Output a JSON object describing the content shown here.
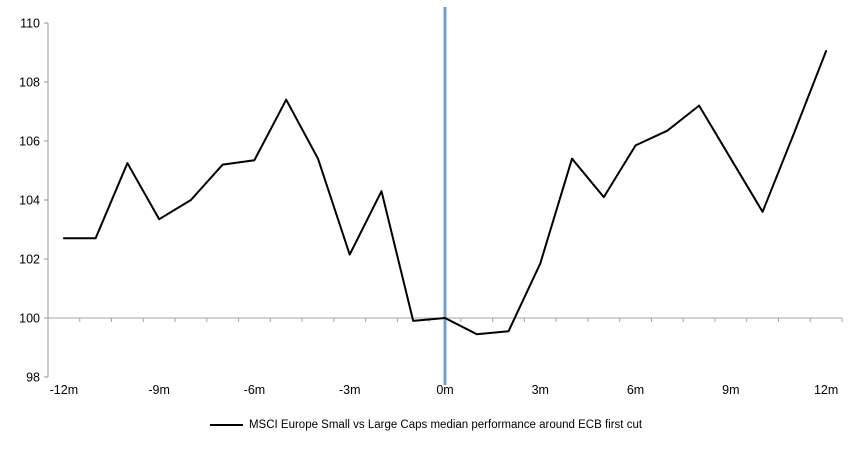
{
  "chart_data": {
    "type": "line",
    "title": "",
    "xlabel": "",
    "ylabel": "",
    "x_months": [
      -12,
      -11,
      -10,
      -9,
      -8,
      -7,
      -6,
      -5,
      -4,
      -3,
      -2,
      -1,
      0,
      1,
      2,
      3,
      4,
      5,
      6,
      7,
      8,
      9,
      10,
      11,
      12
    ],
    "series": [
      {
        "name": "MSCI Europe Small vs Large Caps median performance around ECB first cut",
        "values": [
          102.7,
          102.7,
          105.25,
          103.35,
          104.0,
          105.2,
          105.35,
          107.4,
          105.4,
          102.15,
          104.3,
          99.9,
          100.0,
          99.45,
          99.55,
          101.85,
          105.4,
          104.1,
          105.85,
          106.35,
          107.2,
          105.4,
          103.6,
          106.3,
          109.05
        ]
      }
    ],
    "ylim": [
      98,
      110
    ],
    "y_ticks": [
      98,
      100,
      102,
      104,
      106,
      108,
      110
    ],
    "x_tick_months": [
      -12,
      -9,
      -6,
      -3,
      0,
      3,
      6,
      9,
      12
    ],
    "x_tick_labels": [
      "-12m",
      "-9m",
      "-6m",
      "-3m",
      "0m",
      "3m",
      "6m",
      "9m",
      "12m"
    ],
    "baseline_value": 100,
    "event_line_at_month": 0,
    "grid": "off",
    "legend_position": "bottom"
  },
  "legend": {
    "label": "MSCI Europe Small vs Large Caps median performance around ECB first cut"
  },
  "colors": {
    "series_line": "#000000",
    "event_line": "#6FA0D2",
    "x_axis": "#A6A6A6",
    "y_axis": "#969696",
    "text": "#000000",
    "background": "#FFFFFF"
  }
}
